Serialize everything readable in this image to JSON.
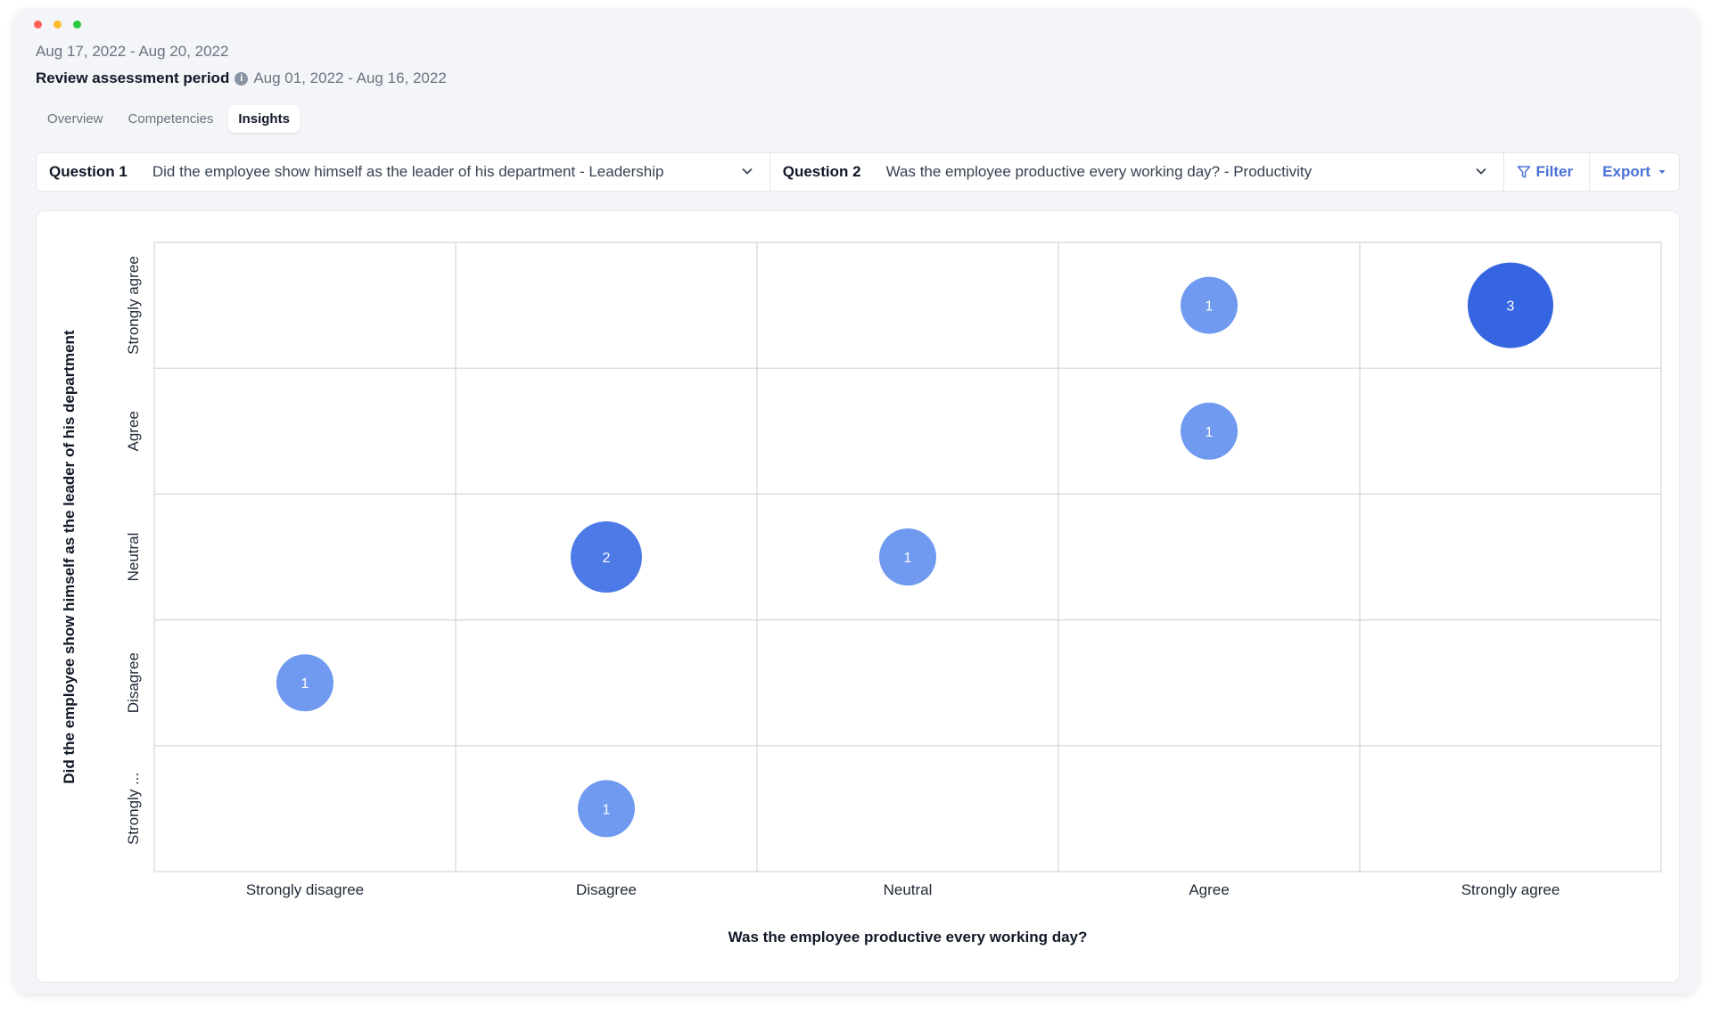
{
  "header": {
    "date_range": "Aug 17, 2022 - Aug 20, 2022",
    "period_label": "Review assessment period",
    "period_value": "Aug 01, 2022 - Aug 16, 2022"
  },
  "tabs": [
    {
      "label": "Overview",
      "active": false
    },
    {
      "label": "Competencies",
      "active": false
    },
    {
      "label": "Insights",
      "active": true
    }
  ],
  "questions": {
    "q1_label": "Question 1",
    "q1_text": "Did the employee show himself as the leader of his department - Leadership",
    "q2_label": "Question 2",
    "q2_text": "Was the employee productive every working day? - Productivity"
  },
  "toolbar": {
    "filter_label": "Filter",
    "export_label": "Export"
  },
  "icons": {
    "info": "info-icon",
    "chevron": "chevron-down-icon",
    "filter": "filter-icon",
    "export_caret": "caret-down-icon"
  },
  "colors": {
    "accent": "#4a72d6",
    "bubble_light": "#6f9af0",
    "bubble_mid": "#4d7ae6",
    "bubble_dark": "#3565e0"
  },
  "chart_data": {
    "type": "scatter",
    "title": "",
    "xlabel": "Was the employee productive every working day?",
    "ylabel": "Did the employee show himself as the leader of his department",
    "x_categories": [
      "Strongly disagree",
      "Disagree",
      "Neutral",
      "Agree",
      "Strongly agree"
    ],
    "y_categories": [
      "Strongly agree",
      "Agree",
      "Neutral",
      "Disagree",
      "Strongly ..."
    ],
    "grid": true,
    "points": [
      {
        "x": "Agree",
        "y": "Strongly agree",
        "count": 1
      },
      {
        "x": "Strongly agree",
        "y": "Strongly agree",
        "count": 3
      },
      {
        "x": "Agree",
        "y": "Agree",
        "count": 1
      },
      {
        "x": "Disagree",
        "y": "Neutral",
        "count": 2
      },
      {
        "x": "Neutral",
        "y": "Neutral",
        "count": 1
      },
      {
        "x": "Strongly disagree",
        "y": "Disagree",
        "count": 1
      },
      {
        "x": "Disagree",
        "y": "Strongly ...",
        "count": 1
      }
    ]
  }
}
